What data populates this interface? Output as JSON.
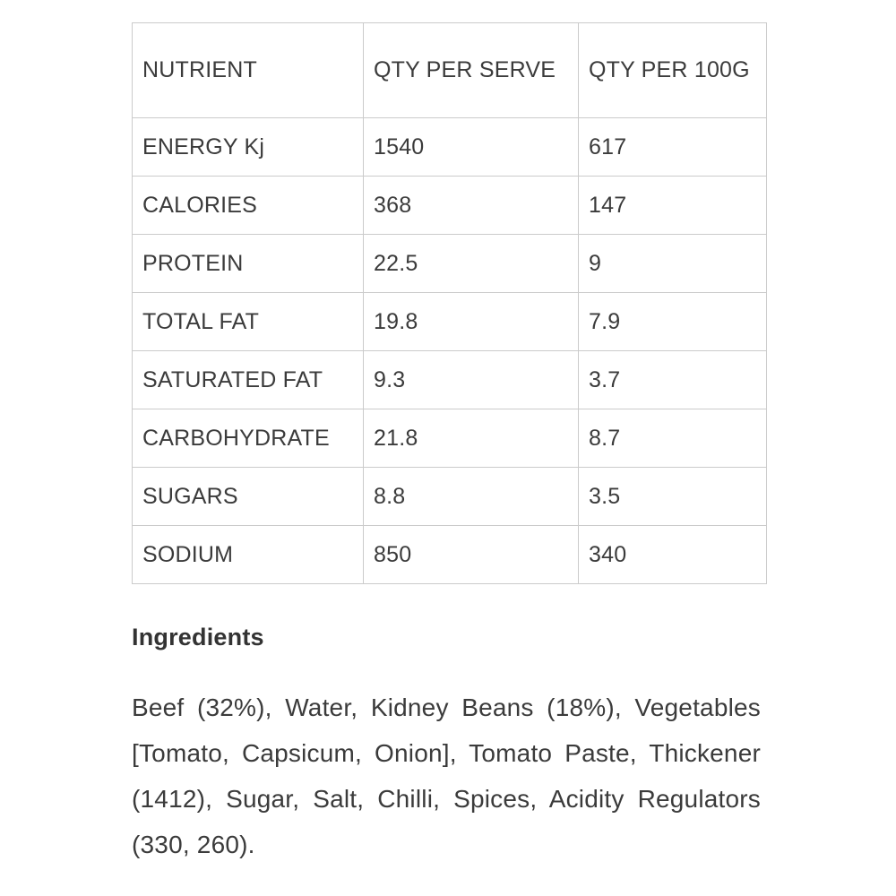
{
  "colors": {
    "background": "#ffffff",
    "table_border": "#cbcbcb",
    "body_text": "#3b3b3b",
    "heading_text": "#333333"
  },
  "nutrition_table": {
    "columns": [
      "NUTRIENT",
      "QTY PER SERVE",
      "QTY PER 100G"
    ],
    "rows": [
      {
        "nutrient": "ENERGY Kj",
        "per_serve": "1540",
        "per_100g": "617"
      },
      {
        "nutrient": "CALORIES",
        "per_serve": "368",
        "per_100g": "147"
      },
      {
        "nutrient": "PROTEIN",
        "per_serve": "22.5",
        "per_100g": "9"
      },
      {
        "nutrient": "TOTAL FAT",
        "per_serve": "19.8",
        "per_100g": "7.9"
      },
      {
        "nutrient": "SATURATED FAT",
        "per_serve": "9.3",
        "per_100g": "3.7"
      },
      {
        "nutrient": "CARBOHYDRATE",
        "per_serve": "21.8",
        "per_100g": "8.7"
      },
      {
        "nutrient": "SUGARS",
        "per_serve": "8.8",
        "per_100g": "3.5"
      },
      {
        "nutrient": "SODIUM",
        "per_serve": "850",
        "per_100g": "340"
      }
    ]
  },
  "ingredients": {
    "heading": "Ingredients",
    "text": "Beef (32%), Water, Kidney Beans (18%), Vegetables [Tomato, Capsicum, Onion], Tomato Paste, Thickener (1412), Sugar, Salt, Chilli, Spices, Acidity Regulators (330, 260)."
  }
}
